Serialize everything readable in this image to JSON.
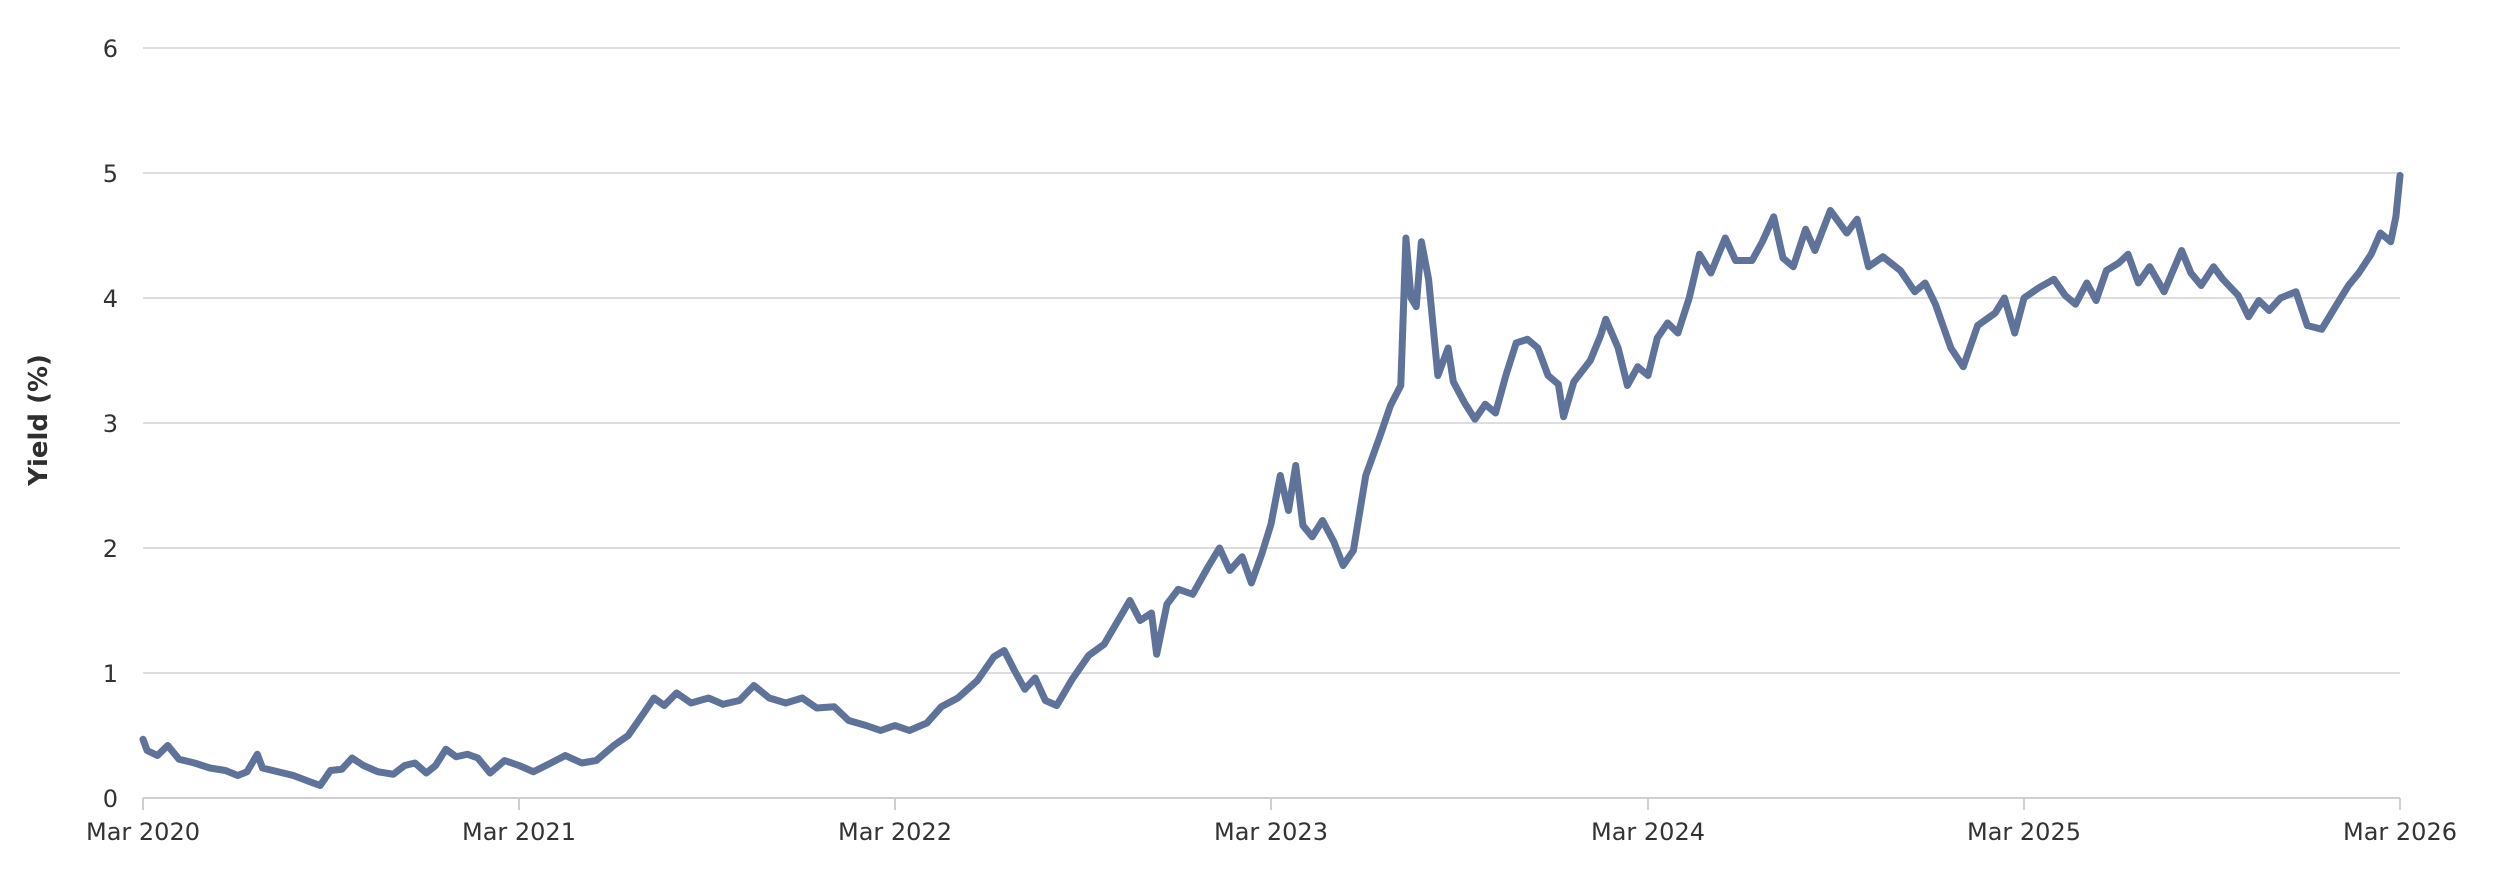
{
  "chart_data": {
    "type": "line",
    "title": "",
    "xlabel": "",
    "ylabel": "Yield (%)",
    "ylim": [
      0,
      6
    ],
    "xlim": [
      "2020-03-01",
      "2026-03-01"
    ],
    "y_ticks": [
      0,
      1,
      2,
      3,
      4,
      5,
      6
    ],
    "y_tick_labels": [
      "0",
      "1",
      "2",
      "3",
      "4",
      "5",
      "6"
    ],
    "x_ticks": [
      "2020-03-01",
      "2021-03-01",
      "2022-03-01",
      "2023-03-01",
      "2024-03-01",
      "2025-03-01",
      "2026-03-01"
    ],
    "x_tick_labels": [
      "Mar 2020",
      "Mar 2021",
      "Mar 2022",
      "Mar 2023",
      "Mar 2024",
      "Mar 2025",
      "Mar 2026"
    ],
    "grid": true,
    "legend": "none",
    "series": [
      {
        "color": "#5f729a",
        "points": [
          [
            "2020-03-01",
            0.47
          ],
          [
            "2020-03-05",
            0.38
          ],
          [
            "2020-03-15",
            0.34
          ],
          [
            "2020-03-25",
            0.42
          ],
          [
            "2020-04-05",
            0.31
          ],
          [
            "2020-04-20",
            0.28
          ],
          [
            "2020-05-05",
            0.24
          ],
          [
            "2020-05-20",
            0.22
          ],
          [
            "2020-06-01",
            0.18
          ],
          [
            "2020-06-10",
            0.21
          ],
          [
            "2020-06-20",
            0.35
          ],
          [
            "2020-06-25",
            0.24
          ],
          [
            "2020-07-10",
            0.21
          ],
          [
            "2020-07-25",
            0.18
          ],
          [
            "2020-08-10",
            0.13
          ],
          [
            "2020-08-20",
            0.1
          ],
          [
            "2020-08-30",
            0.22
          ],
          [
            "2020-09-10",
            0.23
          ],
          [
            "2020-09-20",
            0.32
          ],
          [
            "2020-10-01",
            0.26
          ],
          [
            "2020-10-15",
            0.21
          ],
          [
            "2020-10-30",
            0.19
          ],
          [
            "2020-11-10",
            0.26
          ],
          [
            "2020-11-20",
            0.28
          ],
          [
            "2020-12-01",
            0.2
          ],
          [
            "2020-12-10",
            0.26
          ],
          [
            "2020-12-20",
            0.39
          ],
          [
            "2020-12-30",
            0.33
          ],
          [
            "2021-01-10",
            0.35
          ],
          [
            "2021-01-20",
            0.32
          ],
          [
            "2021-02-01",
            0.2
          ],
          [
            "2021-02-15",
            0.3
          ],
          [
            "2021-03-01",
            0.26
          ],
          [
            "2021-03-15",
            0.21
          ],
          [
            "2021-04-01",
            0.28
          ],
          [
            "2021-04-15",
            0.34
          ],
          [
            "2021-05-01",
            0.28
          ],
          [
            "2021-05-15",
            0.3
          ],
          [
            "2021-06-01",
            0.42
          ],
          [
            "2021-06-15",
            0.5
          ],
          [
            "2021-07-01",
            0.69
          ],
          [
            "2021-07-10",
            0.8
          ],
          [
            "2021-07-20",
            0.74
          ],
          [
            "2021-08-01",
            0.84
          ],
          [
            "2021-08-15",
            0.76
          ],
          [
            "2021-09-01",
            0.8
          ],
          [
            "2021-09-15",
            0.75
          ],
          [
            "2021-10-01",
            0.78
          ],
          [
            "2021-10-15",
            0.9
          ],
          [
            "2021-10-30",
            0.8
          ],
          [
            "2021-11-15",
            0.76
          ],
          [
            "2021-12-01",
            0.8
          ],
          [
            "2021-12-15",
            0.72
          ],
          [
            "2022-01-01",
            0.73
          ],
          [
            "2022-01-15",
            0.62
          ],
          [
            "2022-02-01",
            0.58
          ],
          [
            "2022-02-15",
            0.54
          ],
          [
            "2022-03-01",
            0.58
          ],
          [
            "2022-03-15",
            0.54
          ],
          [
            "2022-04-01",
            0.6
          ],
          [
            "2022-04-15",
            0.73
          ],
          [
            "2022-05-01",
            0.8
          ],
          [
            "2022-05-20",
            0.94
          ],
          [
            "2022-06-05",
            1.13
          ],
          [
            "2022-06-15",
            1.18
          ],
          [
            "2022-06-25",
            1.02
          ],
          [
            "2022-07-05",
            0.87
          ],
          [
            "2022-07-15",
            0.96
          ],
          [
            "2022-07-25",
            0.78
          ],
          [
            "2022-08-05",
            0.74
          ],
          [
            "2022-08-20",
            0.95
          ],
          [
            "2022-09-05",
            1.14
          ],
          [
            "2022-09-20",
            1.23
          ],
          [
            "2022-10-05",
            1.44
          ],
          [
            "2022-10-15",
            1.58
          ],
          [
            "2022-10-25",
            1.42
          ],
          [
            "2022-11-05",
            1.48
          ],
          [
            "2022-11-10",
            1.15
          ],
          [
            "2022-11-20",
            1.55
          ],
          [
            "2022-12-01",
            1.67
          ],
          [
            "2022-12-15",
            1.63
          ],
          [
            "2022-12-30",
            1.85
          ],
          [
            "2023-01-10",
            2.0
          ],
          [
            "2023-01-20",
            1.82
          ],
          [
            "2023-02-01",
            1.93
          ],
          [
            "2023-02-10",
            1.72
          ],
          [
            "2023-02-20",
            1.95
          ],
          [
            "2023-03-01",
            2.19
          ],
          [
            "2023-03-10",
            2.58
          ],
          [
            "2023-03-18",
            2.3
          ],
          [
            "2023-03-25",
            2.66
          ],
          [
            "2023-04-01",
            2.18
          ],
          [
            "2023-04-10",
            2.09
          ],
          [
            "2023-04-20",
            2.22
          ],
          [
            "2023-05-01",
            2.05
          ],
          [
            "2023-05-10",
            1.86
          ],
          [
            "2023-05-20",
            1.98
          ],
          [
            "2023-06-01",
            2.58
          ],
          [
            "2023-06-15",
            2.9
          ],
          [
            "2023-06-25",
            3.14
          ],
          [
            "2023-07-05",
            3.3
          ],
          [
            "2023-07-10",
            4.48
          ],
          [
            "2023-07-15",
            4.0
          ],
          [
            "2023-07-20",
            3.93
          ],
          [
            "2023-07-25",
            4.45
          ],
          [
            "2023-08-01",
            4.15
          ],
          [
            "2023-08-10",
            3.38
          ],
          [
            "2023-08-20",
            3.6
          ],
          [
            "2023-08-25",
            3.33
          ],
          [
            "2023-09-05",
            3.16
          ],
          [
            "2023-09-15",
            3.03
          ],
          [
            "2023-09-25",
            3.15
          ],
          [
            "2023-10-05",
            3.08
          ],
          [
            "2023-10-15",
            3.38
          ],
          [
            "2023-10-25",
            3.64
          ],
          [
            "2023-11-05",
            3.67
          ],
          [
            "2023-11-15",
            3.6
          ],
          [
            "2023-11-25",
            3.38
          ],
          [
            "2023-12-05",
            3.31
          ],
          [
            "2023-12-10",
            3.05
          ],
          [
            "2023-12-20",
            3.33
          ],
          [
            "2024-01-05",
            3.5
          ],
          [
            "2024-01-15",
            3.7
          ],
          [
            "2024-01-20",
            3.83
          ],
          [
            "2024-02-01",
            3.6
          ],
          [
            "2024-02-10",
            3.3
          ],
          [
            "2024-02-20",
            3.45
          ],
          [
            "2024-03-01",
            3.38
          ],
          [
            "2024-03-10",
            3.68
          ],
          [
            "2024-03-20",
            3.8
          ],
          [
            "2024-03-30",
            3.72
          ],
          [
            "2024-04-10",
            4.0
          ],
          [
            "2024-04-20",
            4.35
          ],
          [
            "2024-05-01",
            4.2
          ],
          [
            "2024-05-15",
            4.48
          ],
          [
            "2024-05-25",
            4.3
          ],
          [
            "2024-06-10",
            4.3
          ],
          [
            "2024-06-20",
            4.45
          ],
          [
            "2024-07-01",
            4.65
          ],
          [
            "2024-07-10",
            4.32
          ],
          [
            "2024-07-20",
            4.25
          ],
          [
            "2024-08-01",
            4.55
          ],
          [
            "2024-08-10",
            4.38
          ],
          [
            "2024-08-25",
            4.7
          ],
          [
            "2024-09-10",
            4.52
          ],
          [
            "2024-09-20",
            4.63
          ],
          [
            "2024-10-01",
            4.25
          ],
          [
            "2024-10-15",
            4.33
          ],
          [
            "2024-11-01",
            4.22
          ],
          [
            "2024-11-15",
            4.05
          ],
          [
            "2024-11-25",
            4.12
          ],
          [
            "2024-12-05",
            3.95
          ],
          [
            "2024-12-20",
            3.6
          ],
          [
            "2025-01-01",
            3.45
          ],
          [
            "2025-01-15",
            3.78
          ],
          [
            "2025-02-01",
            3.88
          ],
          [
            "2025-02-10",
            4.0
          ],
          [
            "2025-02-20",
            3.72
          ],
          [
            "2025-03-01",
            4.0
          ],
          [
            "2025-03-15",
            4.08
          ],
          [
            "2025-03-30",
            4.15
          ],
          [
            "2025-04-10",
            4.02
          ],
          [
            "2025-04-20",
            3.95
          ],
          [
            "2025-05-01",
            4.12
          ],
          [
            "2025-05-10",
            3.98
          ],
          [
            "2025-05-20",
            4.22
          ],
          [
            "2025-06-01",
            4.28
          ],
          [
            "2025-06-10",
            4.35
          ],
          [
            "2025-06-20",
            4.12
          ],
          [
            "2025-07-01",
            4.25
          ],
          [
            "2025-07-15",
            4.05
          ],
          [
            "2025-08-01",
            4.38
          ],
          [
            "2025-08-10",
            4.2
          ],
          [
            "2025-08-20",
            4.1
          ],
          [
            "2025-09-01",
            4.25
          ],
          [
            "2025-09-10",
            4.15
          ],
          [
            "2025-09-25",
            4.02
          ],
          [
            "2025-10-05",
            3.85
          ],
          [
            "2025-10-15",
            3.98
          ],
          [
            "2025-10-25",
            3.9
          ],
          [
            "2025-11-05",
            4.0
          ],
          [
            "2025-11-20",
            4.05
          ],
          [
            "2025-12-01",
            3.78
          ],
          [
            "2025-12-15",
            3.75
          ],
          [
            "2026-01-01",
            3.98
          ],
          [
            "2026-01-10",
            4.1
          ],
          [
            "2026-01-20",
            4.2
          ],
          [
            "2026-02-01",
            4.35
          ],
          [
            "2026-02-10",
            4.52
          ],
          [
            "2026-02-20",
            4.45
          ],
          [
            "2026-02-25",
            4.65
          ],
          [
            "2026-03-01",
            4.98
          ]
        ]
      }
    ]
  }
}
